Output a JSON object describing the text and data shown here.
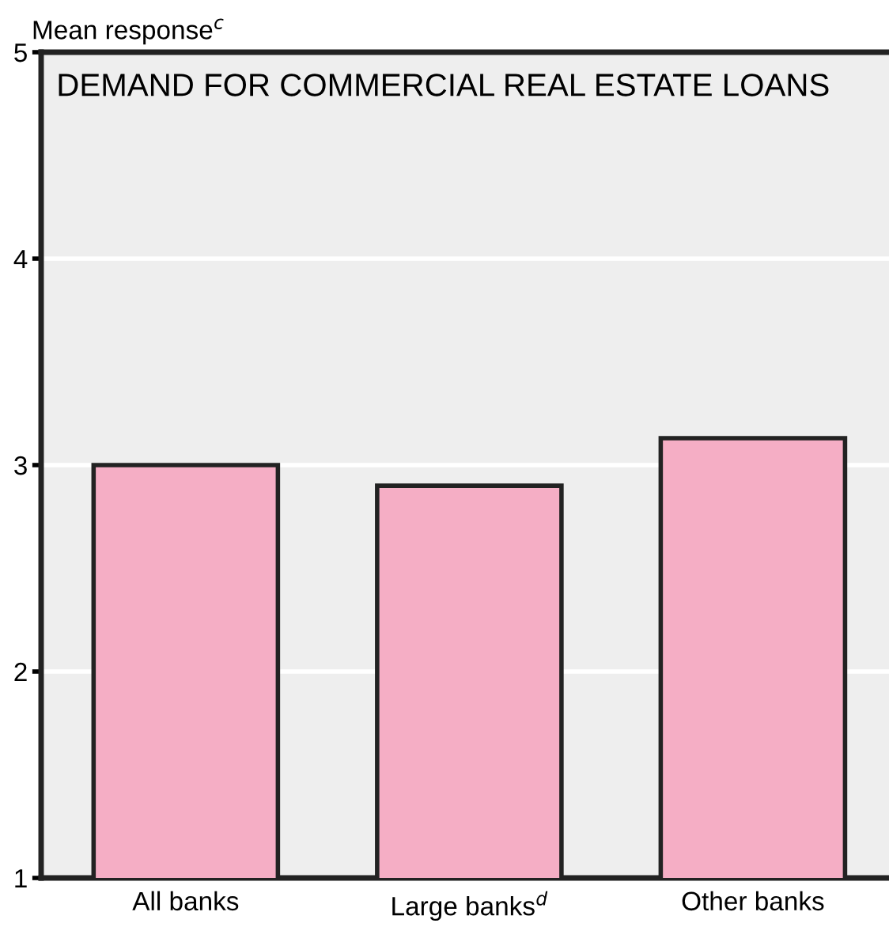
{
  "chart_data": {
    "type": "bar",
    "title": "DEMAND FOR COMMERCIAL REAL ESTATE LOANS",
    "ylabel": "Mean response$^{c}$",
    "categories": [
      "All banks",
      "Large banks$^{d}$",
      "Other banks"
    ],
    "values": [
      3.0,
      2.9,
      3.13
    ],
    "color": "#f5aec5",
    "ylim": [
      1,
      5
    ],
    "yticks": [
      1,
      2,
      3,
      4,
      5
    ],
    "grid": "y"
  }
}
